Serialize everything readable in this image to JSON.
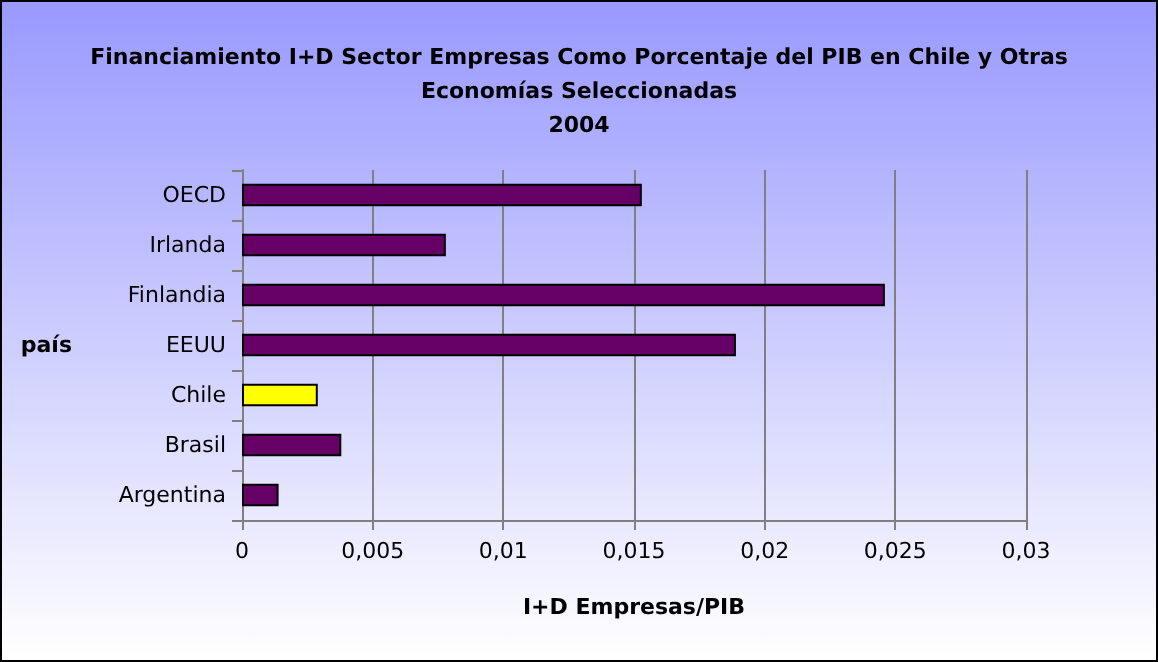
{
  "chart_data": {
    "type": "bar",
    "orientation": "horizontal",
    "title": "Financiamiento I+D Sector Empresas Como Porcentaje del PIB en Chile y Otras\nEconomías Seleccionadas\n2004",
    "xlabel": "I+D Empresas/PIB",
    "ylabel": "país",
    "categories": [
      "OECD",
      "Irlanda",
      "Finlandia",
      "EEUU",
      "Chile",
      "Brasil",
      "Argentina"
    ],
    "values": [
      0.0153,
      0.0078,
      0.0246,
      0.0189,
      0.0029,
      0.0038,
      0.0014
    ],
    "colors": [
      "#660066",
      "#660066",
      "#660066",
      "#660066",
      "#ffff00",
      "#660066",
      "#660066"
    ],
    "xlim": [
      0,
      0.03
    ],
    "xticks": [
      0,
      {
        "value": 0.005,
        "label": "0,005"
      },
      {
        "value": 0.01,
        "label": "0,01"
      },
      {
        "value": 0.015,
        "label": "0,015"
      },
      {
        "value": 0.02,
        "label": "0,02"
      },
      {
        "value": 0.025,
        "label": "0,025"
      },
      {
        "value": 0.03,
        "label": "0,03"
      }
    ],
    "grid": "x"
  }
}
